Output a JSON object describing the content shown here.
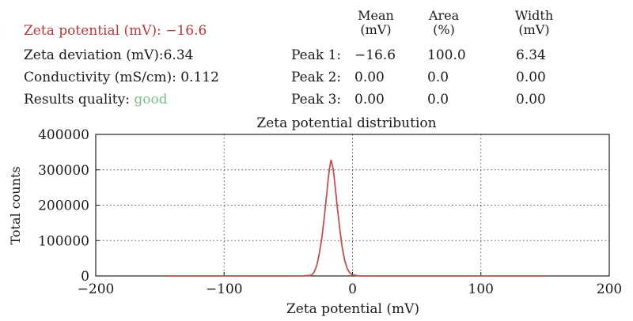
{
  "summary": {
    "zeta_potential": {
      "label": "Zeta potential (mV):",
      "value": "−16.6",
      "color": "#b23a3a"
    },
    "zeta_deviation": {
      "label": "Zeta deviation (mV):",
      "value": "6.34"
    },
    "conductivity": {
      "label": "Conductivity (mS/cm):",
      "value": "0.112"
    },
    "results_quality": {
      "label": "Results quality:",
      "value": "good",
      "color": "#7fbf8c"
    }
  },
  "peaks_table": {
    "headers": [
      {
        "line1": "Mean",
        "line2": "(mV)"
      },
      {
        "line1": "Area",
        "line2": "(%)"
      },
      {
        "line1": "Width",
        "line2": "(mV)"
      }
    ],
    "rows": [
      {
        "label": "Peak 1:",
        "mean": "−16.6",
        "area": "100.0",
        "width": "6.34"
      },
      {
        "label": "Peak 2:",
        "mean": "0.00",
        "area": "0.0",
        "width": "0.00"
      },
      {
        "label": "Peak 3:",
        "mean": "0.00",
        "area": "0.0",
        "width": "0.00"
      }
    ]
  },
  "chart_data": {
    "type": "line",
    "title": "Zeta potential distribution",
    "xlabel": "Zeta potential (mV)",
    "ylabel": "Total counts",
    "xlim": [
      -200,
      200
    ],
    "ylim": [
      0,
      400000
    ],
    "x_ticks": [
      -200,
      -100,
      0,
      100,
      200
    ],
    "x_tick_labels": [
      "−200",
      "−100",
      "0",
      "100",
      "200"
    ],
    "y_ticks": [
      0,
      100000,
      200000,
      300000,
      400000
    ],
    "y_tick_labels": [
      "0",
      "100000",
      "200000",
      "300000",
      "400000"
    ],
    "grid": "dotted",
    "series_color": "#c0504d",
    "series": [
      {
        "x": [
          -145,
          -40,
          -32,
          -30,
          -28,
          -26,
          -24,
          -22,
          -20,
          -19,
          -18,
          -17,
          -16.6,
          -16,
          -15,
          -14,
          -12,
          -10,
          -8,
          -6,
          -4,
          -2,
          0,
          5,
          10,
          150
        ],
        "y": [
          0,
          0,
          2000,
          10000,
          28000,
          60000,
          105000,
          165000,
          235000,
          272000,
          302000,
          322000,
          328000,
          318000,
          300000,
          270000,
          200000,
          135000,
          80000,
          42000,
          20000,
          8000,
          3000,
          0,
          0,
          0
        ]
      }
    ]
  }
}
